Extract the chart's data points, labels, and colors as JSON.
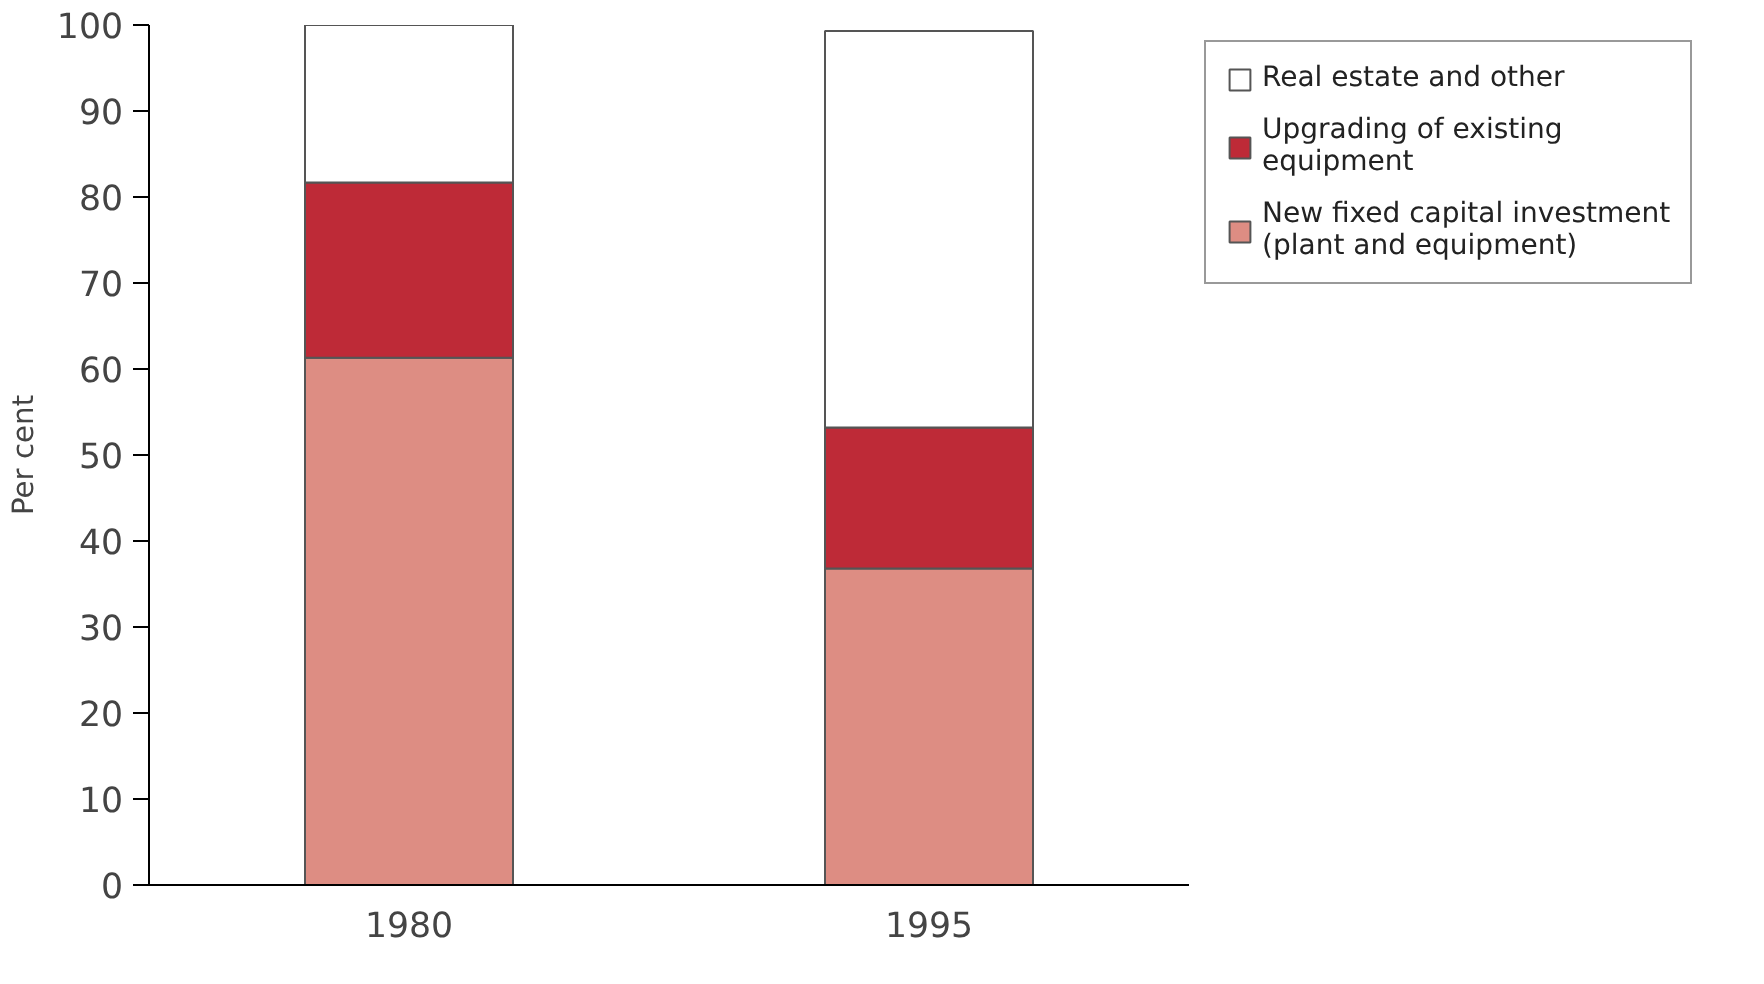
{
  "chart_data": {
    "type": "bar",
    "stacked": true,
    "ylabel": "Per cent",
    "categories": [
      "1980",
      "1995"
    ],
    "series": [
      {
        "name": "New fixed capital investment (plant and equipment)",
        "color": "#dd8d83",
        "values": [
          61.3,
          36.8
        ]
      },
      {
        "name": "Upgrading of existing equipment",
        "color": "#be2a37",
        "values": [
          20.4,
          16.4
        ]
      },
      {
        "name": "Real estate and other",
        "color": "#ffffff",
        "values": [
          18.3,
          46.1
        ]
      }
    ],
    "ylim": [
      0,
      100
    ],
    "yticks": [
      0,
      10,
      20,
      30,
      40,
      50,
      60,
      70,
      80,
      90,
      100
    ],
    "grid": false,
    "legend": "top right"
  }
}
